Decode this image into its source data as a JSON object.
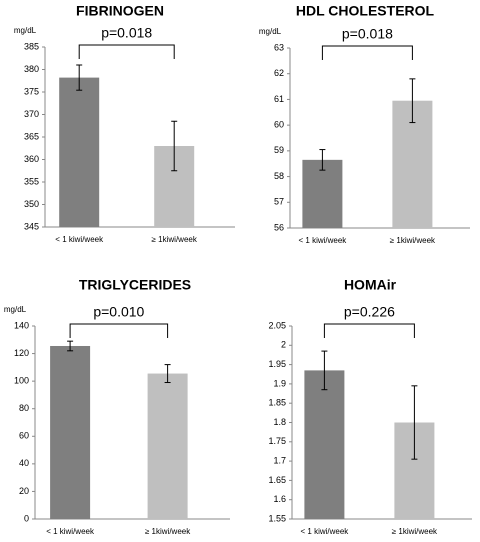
{
  "chart_data": [
    {
      "type": "bar",
      "title": "FIBRINOGEN",
      "y_label": "mg/dL",
      "categories": [
        "< 1 kiwi/week",
        "≥ 1kiwi/week"
      ],
      "values": [
        378.2,
        363
      ],
      "errors": [
        2.8,
        5.5
      ],
      "colors": [
        "#7f7f7f",
        "#bfbfbf"
      ],
      "ylim": [
        345,
        385
      ],
      "yticks": [
        345,
        350,
        355,
        360,
        365,
        370,
        375,
        380,
        385
      ],
      "annotation": "p=0.018"
    },
    {
      "type": "bar",
      "title": "HDL CHOLESTEROL",
      "y_label": "mg/dL",
      "categories": [
        "< 1 kiwi/week",
        "≥ 1kiwi/week"
      ],
      "values": [
        58.65,
        60.95
      ],
      "errors": [
        0.4,
        0.85
      ],
      "colors": [
        "#7f7f7f",
        "#bfbfbf"
      ],
      "ylim": [
        56,
        63
      ],
      "yticks": [
        56,
        57,
        58,
        59,
        60,
        61,
        62,
        63
      ],
      "annotation": "p=0.018"
    },
    {
      "type": "bar",
      "title": "TRIGLYCERIDES",
      "y_label": "mg/dL",
      "categories": [
        "< 1 kiwi/week",
        "≥ 1kiwi/week"
      ],
      "values": [
        125.5,
        105.5
      ],
      "errors": [
        3.5,
        6.5
      ],
      "colors": [
        "#7f7f7f",
        "#bfbfbf"
      ],
      "ylim": [
        0,
        140
      ],
      "yticks": [
        0,
        20,
        40,
        60,
        80,
        100,
        120,
        140
      ],
      "annotation": "p=0.010"
    },
    {
      "type": "bar",
      "title": "HOMAir",
      "categories": [
        "< 1 kiwi/week",
        "≥ 1kiwi/week"
      ],
      "values": [
        1.935,
        1.8
      ],
      "errors": [
        0.05,
        0.095
      ],
      "colors": [
        "#7f7f7f",
        "#bfbfbf"
      ],
      "ylim": [
        1.55,
        2.05
      ],
      "yticks": [
        1.55,
        1.6,
        1.65,
        1.7,
        1.75,
        1.8,
        1.85,
        1.9,
        1.95,
        2,
        2.05
      ],
      "annotation": "p=0.226"
    }
  ]
}
